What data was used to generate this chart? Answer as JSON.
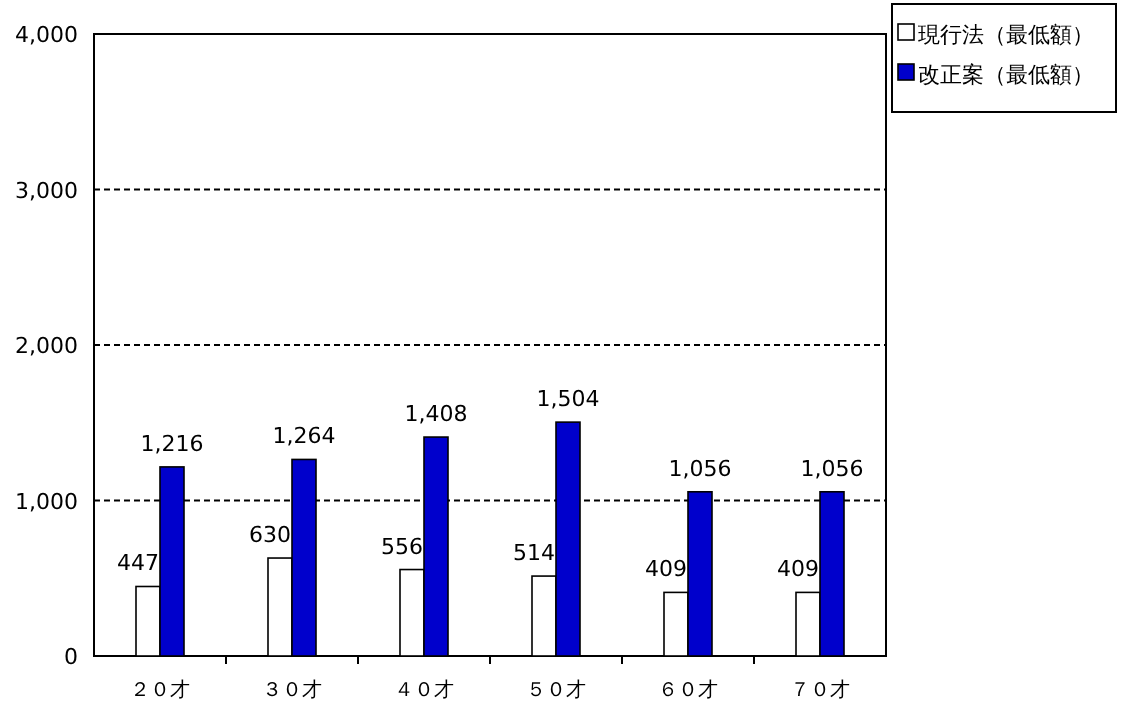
{
  "chart_data": {
    "type": "bar",
    "categories": [
      "２０才",
      "３０才",
      "４０才",
      "５０才",
      "６０才",
      "７０才"
    ],
    "series": [
      {
        "name": "現行法（最低額）",
        "color": "#ffffff",
        "values": [
          447,
          630,
          556,
          514,
          409,
          409
        ],
        "value_labels": [
          "447",
          "630",
          "556",
          "514",
          "409",
          "409"
        ]
      },
      {
        "name": "改正案（最低額）",
        "color": "#0000cc",
        "values": [
          1216,
          1264,
          1408,
          1504,
          1056,
          1056
        ],
        "value_labels": [
          "1,216",
          "1,264",
          "1,408",
          "1,504",
          "1,056",
          "1,056"
        ]
      }
    ],
    "ylim": [
      0,
      4000
    ],
    "yticks": [
      {
        "value": 0,
        "label": "0"
      },
      {
        "value": 1000,
        "label": "1,000"
      },
      {
        "value": 2000,
        "label": "2,000"
      },
      {
        "value": 3000,
        "label": "3,000"
      },
      {
        "value": 4000,
        "label": "4,000"
      }
    ],
    "grid": "y",
    "legend": "top right"
  }
}
